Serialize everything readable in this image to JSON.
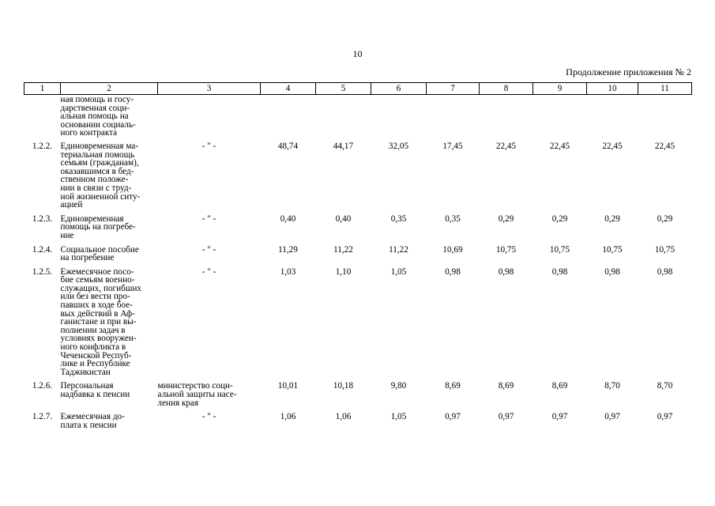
{
  "page_number": "10",
  "continuation_label": "Продолжение приложения № 2",
  "columns": [
    "1",
    "2",
    "3",
    "4",
    "5",
    "6",
    "7",
    "8",
    "9",
    "10",
    "11"
  ],
  "rows": [
    {
      "num": "",
      "desc": "ная помощь и госу-\nдарственная соци-\nальная помощь на\nосновании социаль-\nного контракта",
      "dept": "",
      "values": [
        "",
        "",
        "",
        "",
        "",
        "",
        "",
        ""
      ]
    },
    {
      "num": "1.2.2.",
      "desc": "Единовременная ма-\nтериальная помощь\nсемьям (гражданам),\nоказавшимся в бед-\nственном положе-\nнии в связи с труд-\nной жизненной ситу-\nацией",
      "dept": "- \" -",
      "values": [
        "48,74",
        "44,17",
        "32,05",
        "17,45",
        "22,45",
        "22,45",
        "22,45",
        "22,45"
      ]
    },
    {
      "num": "1.2.3.",
      "desc": "Единовременная\nпомощь на погребе-\nние",
      "dept": "- \" -",
      "values": [
        "0,40",
        "0,40",
        "0,35",
        "0,35",
        "0,29",
        "0,29",
        "0,29",
        "0,29"
      ]
    },
    {
      "num": "1.2.4.",
      "desc": "Социальное пособие\nна погребение",
      "dept": "- \" -",
      "values": [
        "11,29",
        "11,22",
        "11,22",
        "10,69",
        "10,75",
        "10,75",
        "10,75",
        "10,75"
      ]
    },
    {
      "num": "1.2.5.",
      "desc": "Ежемесячное посо-\nбие семьям военно-\nслужащих, погибших\nили без вести про-\nпавших в ходе бое-\nвых действий в Аф-\nганистане и при вы-\nполнении задач в\nусловиях вооружен-\nного конфликта в\nЧеченской Респуб-\nлике и Республике\nТаджикистан",
      "dept": "- \" -",
      "values": [
        "1,03",
        "1,10",
        "1,05",
        "0,98",
        "0,98",
        "0,98",
        "0,98",
        "0,98"
      ]
    },
    {
      "num": "1.2.6.",
      "desc": "Персональная\nнадбавка к пенсии",
      "dept": "министерство соци-\nальной защиты насе-\nления края",
      "values": [
        "10,01",
        "10,18",
        "9,80",
        "8,69",
        "8,69",
        "8,69",
        "8,70",
        "8,70"
      ]
    },
    {
      "num": "1.2.7.",
      "desc": "Ежемесячная до-\nплата к пенсии",
      "dept": "- \" -",
      "values": [
        "1,06",
        "1,06",
        "1,05",
        "0,97",
        "0,97",
        "0,97",
        "0,97",
        "0,97"
      ]
    }
  ]
}
